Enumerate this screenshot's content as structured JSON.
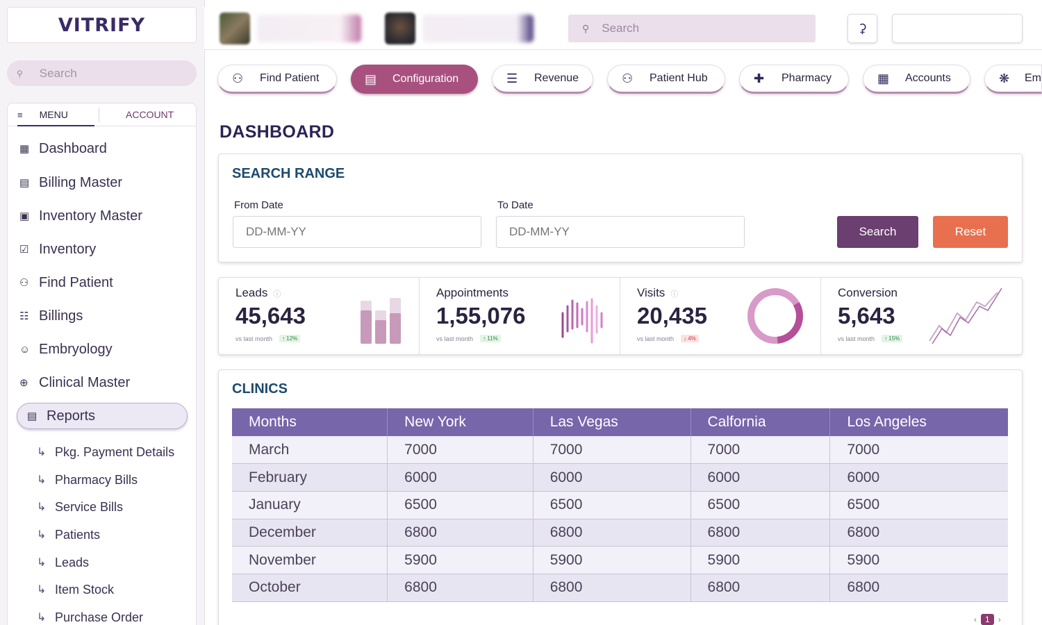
{
  "brand": {
    "logo": "VITRIFY"
  },
  "sidebar": {
    "search_placeholder": "Search",
    "tabs": {
      "menu": "MENU",
      "account": "ACCOUNT"
    },
    "items": [
      {
        "label": "Dashboard",
        "icon": "grid-icon"
      },
      {
        "label": "Billing Master",
        "icon": "receipt-icon"
      },
      {
        "label": "Inventory Master",
        "icon": "box-icon"
      },
      {
        "label": "Inventory",
        "icon": "calendar-check-icon"
      },
      {
        "label": "Find Patient",
        "icon": "user-search-icon"
      },
      {
        "label": "Billings",
        "icon": "document-icon"
      },
      {
        "label": "Embryology",
        "icon": "embryo-icon"
      },
      {
        "label": "Clinical Master",
        "icon": "plus-circle-icon"
      },
      {
        "label": "Reports",
        "icon": "report-icon",
        "active": true
      }
    ],
    "sub_items": [
      "Pkg. Payment Details",
      "Pharmacy Bills",
      "Service Bills",
      "Patients",
      "Leads",
      "Item Stock",
      "Purchase Order"
    ]
  },
  "topbar": {
    "search_placeholder": "Search",
    "notification_icon": "bell-icon"
  },
  "module_tabs": [
    {
      "label": "Find Patient",
      "icon": "user-search-icon"
    },
    {
      "label": "Configuration",
      "icon": "config-icon",
      "active": true
    },
    {
      "label": "Revenue",
      "icon": "coins-icon"
    },
    {
      "label": "Patient Hub",
      "icon": "user-plus-icon"
    },
    {
      "label": "Pharmacy",
      "icon": "medical-cross-icon"
    },
    {
      "label": "Accounts",
      "icon": "calculator-icon"
    },
    {
      "label": "Em",
      "icon": "handshake-icon"
    }
  ],
  "page_title": "DASHBOARD",
  "search_range": {
    "title": "SEARCH RANGE",
    "from_label": "From Date",
    "from_placeholder": "DD-MM-YY",
    "to_label": "To Date",
    "to_placeholder": "DD-MM-YY",
    "search_button": "Search",
    "reset_button": "Reset"
  },
  "stats": [
    {
      "label": "Leads",
      "value": "45,643",
      "sub": "vs last month",
      "change": "↑ 12%",
      "trend": "up",
      "chart": "bars"
    },
    {
      "label": "Appointments",
      "value": "1,55,076",
      "sub": "vs last month",
      "change": "↑ 11%",
      "trend": "up",
      "chart": "wave"
    },
    {
      "label": "Visits",
      "value": "20,435",
      "sub": "vs last month",
      "change": "↓ 4%",
      "trend": "down",
      "chart": "donut"
    },
    {
      "label": "Conversion",
      "value": "5,643",
      "sub": "vs last month",
      "change": "↑ 15%",
      "trend": "up",
      "chart": "line"
    }
  ],
  "clinics": {
    "title": "CLINICS",
    "columns": [
      "Months",
      "New York",
      "Las Vegas",
      "Calfornia",
      "Los Angeles"
    ],
    "rows": [
      [
        "March",
        "7000",
        "7000",
        "7000",
        "7000"
      ],
      [
        "February",
        "6000",
        "6000",
        "6000",
        "6000"
      ],
      [
        "January",
        "6500",
        "6500",
        "6500",
        "6500"
      ],
      [
        "December",
        "6800",
        "6800",
        "6800",
        "6800"
      ],
      [
        "November",
        "5900",
        "5900",
        "5900",
        "5900"
      ],
      [
        "October",
        "6800",
        "6800",
        "6800",
        "6800"
      ]
    ]
  },
  "pagination": {
    "current": "1",
    "prev": "‹",
    "next": "›"
  },
  "colors": {
    "primary": "#3a2a66",
    "accent": "#a8517f",
    "table_header": "#7766aa",
    "search_button": "#6b3f70",
    "reset_button": "#e8704f"
  }
}
